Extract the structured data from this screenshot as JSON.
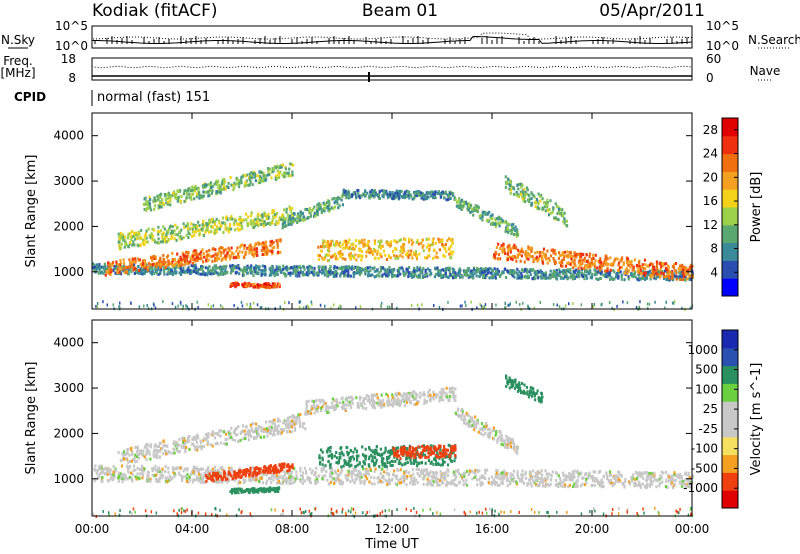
{
  "header": {
    "station": "Kodiak (fitACF)",
    "beam": "Beam 01",
    "date": "05/Apr/2011"
  },
  "mini_panels": {
    "sky_label": "N.Sky",
    "search_label": "N.Search",
    "sky_ticks": [
      "10^5",
      "10^0"
    ],
    "search_ticks": [
      "10^5",
      "10^0"
    ],
    "freq_label_1": "Freq.",
    "freq_label_2": "[MHz]",
    "freq_ticks": [
      "18",
      "8"
    ],
    "nave_label": "Nave",
    "nave_ticks": [
      "60",
      "0"
    ],
    "cpid_label": "CPID",
    "cpid_text": "normal (fast) 151"
  },
  "colors": {
    "power_scale": [
      "#0000ff",
      "#2a4db0",
      "#3a8a9a",
      "#5aa870",
      "#9ccf4a",
      "#f5d21a",
      "#f5a020",
      "#f07010",
      "#ee3010",
      "#e00000"
    ],
    "velocity_scale": [
      "#e00000",
      "#f04010",
      "#f5a020",
      "#f5e060",
      "#c8c8c8",
      "#c8c8c8",
      "#6ad040",
      "#2a9060",
      "#2a50b0",
      "#1a2ab0"
    ],
    "ground_scatter": "#c8c8c8"
  },
  "chart_data": [
    {
      "type": "heatmap",
      "title": "Power",
      "xlabel": "",
      "ylabel": "Slant Range [km]",
      "x_ticks": [
        "00:00",
        "04:00",
        "08:00",
        "12:00",
        "16:00",
        "20:00",
        "00:00"
      ],
      "y_ticks": [
        "1000",
        "2000",
        "3000",
        "4000"
      ],
      "xlim": [
        0,
        24
      ],
      "ylim": [
        180,
        4500
      ],
      "colorbar": {
        "label": "Power [dB]",
        "ticks": [
          "4",
          "8",
          "12",
          "16",
          "20",
          "24",
          "28"
        ],
        "range": [
          0,
          30
        ]
      },
      "bands": [
        {
          "t": [
            0,
            24
          ],
          "r_center": [
            1100,
            950
          ],
          "width": 220,
          "value": 8
        },
        {
          "t": [
            0.5,
            7.5
          ],
          "r_center": [
            1100,
            1600
          ],
          "width": 300,
          "value": 22
        },
        {
          "t": [
            1,
            8
          ],
          "r_center": [
            1700,
            2300
          ],
          "width": 350,
          "value": 14
        },
        {
          "t": [
            2,
            8
          ],
          "r_center": [
            2500,
            3300
          ],
          "width": 300,
          "value": 12
        },
        {
          "t": [
            5.5,
            7.5
          ],
          "r_center": [
            750,
            720
          ],
          "width": 90,
          "value": 24
        },
        {
          "t": [
            7.5,
            10
          ],
          "r_center": [
            2100,
            2600
          ],
          "width": 250,
          "value": 10
        },
        {
          "t": [
            10,
            14.5
          ],
          "r_center": [
            2750,
            2700
          ],
          "width": 180,
          "value": 8
        },
        {
          "t": [
            14.5,
            17
          ],
          "r_center": [
            2600,
            1900
          ],
          "width": 250,
          "value": 10
        },
        {
          "t": [
            9,
            14.5
          ],
          "r_center": [
            1500,
            1550
          ],
          "width": 450,
          "value": 18
        },
        {
          "t": [
            16,
            24
          ],
          "r_center": [
            1500,
            1000
          ],
          "width": 350,
          "value": 22
        },
        {
          "t": [
            16.5,
            19
          ],
          "r_center": [
            3000,
            2200
          ],
          "width": 350,
          "value": 12
        }
      ]
    },
    {
      "type": "heatmap",
      "title": "Velocity",
      "xlabel": "Time UT",
      "ylabel": "Slant Range [km]",
      "x_ticks": [
        "00:00",
        "04:00",
        "08:00",
        "12:00",
        "16:00",
        "20:00",
        "00:00"
      ],
      "y_ticks": [
        "1000",
        "2000",
        "3000",
        "4000"
      ],
      "xlim": [
        0,
        24
      ],
      "ylim": [
        180,
        4500
      ],
      "colorbar": {
        "label": "Velocity [m s^-1]",
        "ticks": [
          "1000",
          "500",
          "100",
          "25",
          "-25",
          "-100",
          "-500",
          "-1000"
        ]
      },
      "bands": [
        {
          "t": [
            0,
            24
          ],
          "r_center": [
            1150,
            1000
          ],
          "width": 350,
          "value": 0
        },
        {
          "t": [
            1,
            8.5
          ],
          "r_center": [
            1500,
            2300
          ],
          "width": 350,
          "value": 0
        },
        {
          "t": [
            8.5,
            14.5
          ],
          "r_center": [
            2600,
            2900
          ],
          "width": 300,
          "value": 0
        },
        {
          "t": [
            14.5,
            17
          ],
          "r_center": [
            2500,
            1700
          ],
          "width": 300,
          "value": 0
        },
        {
          "t": [
            5.5,
            7.5
          ],
          "r_center": [
            760,
            800
          ],
          "width": 90,
          "value": 300
        },
        {
          "t": [
            4.5,
            8
          ],
          "r_center": [
            1050,
            1300
          ],
          "width": 180,
          "value": -300
        },
        {
          "t": [
            9,
            14.5
          ],
          "r_center": [
            1500,
            1550
          ],
          "width": 450,
          "value": 200
        },
        {
          "t": [
            12,
            14.5
          ],
          "r_center": [
            1600,
            1650
          ],
          "width": 250,
          "value": -150
        },
        {
          "t": [
            16.5,
            18
          ],
          "r_center": [
            3200,
            2800
          ],
          "width": 250,
          "value": 150
        }
      ]
    }
  ]
}
